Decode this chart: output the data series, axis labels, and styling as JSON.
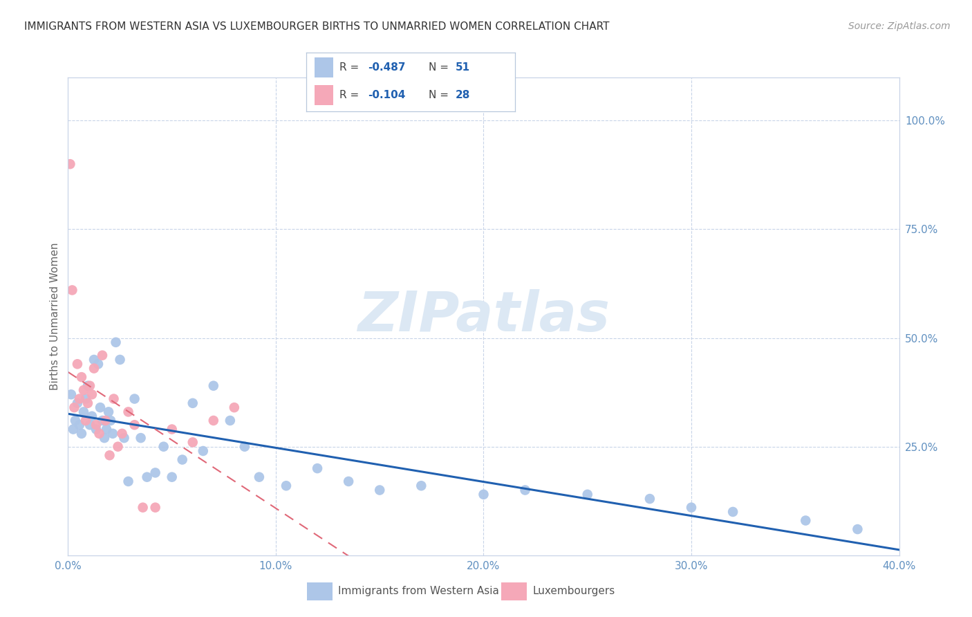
{
  "title": "IMMIGRANTS FROM WESTERN ASIA VS LUXEMBOURGER BIRTHS TO UNMARRIED WOMEN CORRELATION CHART",
  "source": "Source: ZipAtlas.com",
  "ylabel_left": "Births to Unmarried Women",
  "legend_label1": "Immigrants from Western Asia",
  "legend_label2": "Luxembourgers",
  "R1": -0.487,
  "N1": 51,
  "R2": -0.104,
  "N2": 28,
  "blue_color": "#adc6e8",
  "pink_color": "#f5a8b8",
  "blue_line_color": "#2060b0",
  "pink_line_color": "#e06878",
  "background_color": "#ffffff",
  "grid_color": "#c8d4e8",
  "watermark_color": "#dce8f4",
  "title_color": "#333333",
  "source_color": "#999999",
  "tick_color": "#6090c0",
  "label_color": "#666666",
  "xlim": [
    0,
    40
  ],
  "ylim": [
    0,
    110
  ],
  "xticks": [
    0,
    10,
    20,
    30,
    40
  ],
  "xtick_labels": [
    "0.0%",
    "10.0%",
    "20.0%",
    "30.0%",
    "40.0%"
  ],
  "yticks_right": [
    25,
    50,
    75,
    100
  ],
  "ytick_labels_right": [
    "25.0%",
    "50.0%",
    "75.0%",
    "100.0%"
  ],
  "blue_x": [
    0.15,
    0.25,
    0.35,
    0.45,
    0.55,
    0.65,
    0.75,
    0.85,
    0.95,
    1.05,
    1.15,
    1.25,
    1.35,
    1.45,
    1.55,
    1.65,
    1.75,
    1.85,
    1.95,
    2.05,
    2.15,
    2.3,
    2.5,
    2.7,
    2.9,
    3.2,
    3.5,
    3.8,
    4.2,
    4.6,
    5.0,
    5.5,
    6.0,
    6.5,
    7.0,
    7.8,
    8.5,
    9.2,
    10.5,
    12.0,
    13.5,
    15.0,
    17.0,
    20.0,
    22.0,
    25.0,
    28.0,
    30.0,
    32.0,
    35.5,
    38.0
  ],
  "blue_y": [
    37,
    29,
    31,
    35,
    30,
    28,
    33,
    36,
    39,
    30,
    32,
    45,
    29,
    44,
    34,
    31,
    27,
    29,
    33,
    31,
    28,
    49,
    45,
    27,
    17,
    36,
    27,
    18,
    19,
    25,
    18,
    22,
    35,
    24,
    39,
    31,
    25,
    18,
    16,
    20,
    17,
    15,
    16,
    14,
    15,
    14,
    13,
    11,
    10,
    8,
    6
  ],
  "pink_x": [
    0.1,
    0.2,
    0.3,
    0.45,
    0.55,
    0.65,
    0.75,
    0.85,
    0.95,
    1.05,
    1.15,
    1.25,
    1.35,
    1.5,
    1.65,
    1.8,
    2.0,
    2.2,
    2.4,
    2.6,
    2.9,
    3.2,
    3.6,
    4.2,
    5.0,
    6.0,
    7.0,
    8.0
  ],
  "pink_y": [
    90,
    61,
    34,
    44,
    36,
    41,
    38,
    31,
    35,
    39,
    37,
    43,
    30,
    28,
    46,
    31,
    23,
    36,
    25,
    28,
    33,
    30,
    11,
    11,
    29,
    26,
    31,
    34
  ]
}
